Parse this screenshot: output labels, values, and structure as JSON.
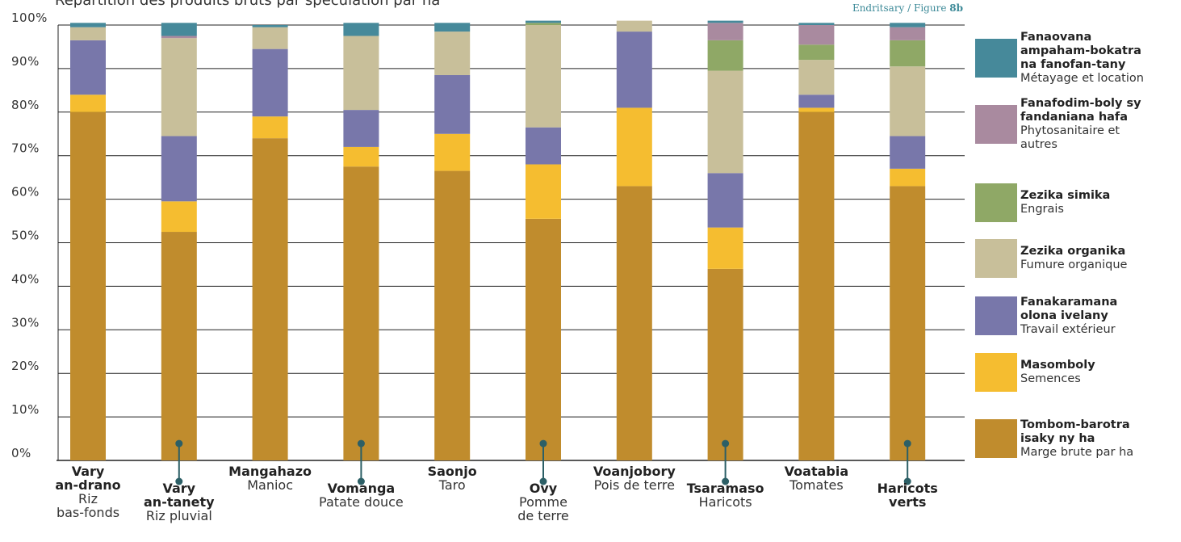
{
  "chart_data": {
    "type": "bar",
    "stacked": true,
    "title": "Répartition des produits bruts par spéculation par ha",
    "source_prefix": "Endritsary / Figure",
    "source_number": "8b",
    "yticks": [
      "0%",
      "10%",
      "20%",
      "30%",
      "40%",
      "50%",
      "60%",
      "70%",
      "80%",
      "90%",
      "100%"
    ],
    "ylim": [
      0,
      100
    ],
    "grid": true,
    "legend_position": "right",
    "categories": [
      {
        "mg": [
          "Vary",
          "an-drano"
        ],
        "fr": [
          "Riz",
          "bas-fonds"
        ],
        "row": 0,
        "pin": false
      },
      {
        "mg": [
          "Vary",
          "an-tanety"
        ],
        "fr": [
          "Riz pluvial"
        ],
        "row": 1,
        "pin": true
      },
      {
        "mg": [
          "Mangahazo"
        ],
        "fr": [
          "Manioc"
        ],
        "row": 0,
        "pin": false
      },
      {
        "mg": [
          "Vomanga"
        ],
        "fr": [
          "Patate douce"
        ],
        "row": 1,
        "pin": true
      },
      {
        "mg": [
          "Saonjo"
        ],
        "fr": [
          "Taro"
        ],
        "row": 0,
        "pin": false
      },
      {
        "mg": [
          "Ovy"
        ],
        "fr": [
          "Pomme",
          "de terre"
        ],
        "row": 1,
        "pin": true
      },
      {
        "mg": [
          "Voanjobory"
        ],
        "fr": [
          "Pois de terre"
        ],
        "row": 0,
        "pin": false
      },
      {
        "mg": [
          "Tsaramaso"
        ],
        "fr": [
          "Haricots"
        ],
        "row": 1,
        "pin": true
      },
      {
        "mg": [
          "Voatabia"
        ],
        "fr": [
          "Tomates"
        ],
        "row": 0,
        "pin": false
      },
      {
        "mg": [
          "Haricots",
          "verts"
        ],
        "fr": [],
        "row": 1,
        "pin": true
      }
    ],
    "series": [
      {
        "name_mg": "Tombom-barotra isaky ny ha",
        "name_fr": "Marge brute par ha",
        "color": "#c08c2d",
        "values": [
          80,
          52.5,
          74,
          67.5,
          66.5,
          55.5,
          63,
          44,
          80,
          63
        ]
      },
      {
        "name_mg": "Masomboly",
        "name_fr": "Semences",
        "color": "#f5bd30",
        "values": [
          4,
          7,
          5,
          4.5,
          8.5,
          12.5,
          18,
          9.5,
          1,
          4
        ]
      },
      {
        "name_mg": "Fanakaramana olona ivelany",
        "name_fr": "Travail extérieur",
        "color": "#7877aa",
        "values": [
          12.5,
          15,
          15.5,
          8.5,
          13.5,
          8.5,
          17.5,
          12.5,
          3,
          7.5
        ]
      },
      {
        "name_mg": "Zezika organika",
        "name_fr": "Fumure organique",
        "color": "#c8bf9a",
        "values": [
          3,
          22.5,
          5,
          17,
          10,
          23.5,
          2.5,
          23.5,
          8,
          16
        ]
      },
      {
        "name_mg": "Zezika simika",
        "name_fr": "Engrais",
        "color": "#8fa866",
        "values": [
          0,
          0,
          0,
          0,
          0,
          0.5,
          0,
          7,
          3.5,
          6
        ]
      },
      {
        "name_mg": "Fanafodim-boly sy fandaniana hafa",
        "name_fr": "Phytosanitaire et autres",
        "color": "#a98a9f",
        "values": [
          0,
          0.5,
          0,
          0,
          0,
          0,
          0,
          4,
          4.5,
          3
        ]
      },
      {
        "name_mg": "Fanaovana ampaham-bokatra na fanofan-tany",
        "name_fr": "Métayage et location",
        "color": "#46899a",
        "values": [
          1,
          3,
          0.5,
          3,
          2,
          0.5,
          0,
          0.5,
          0.5,
          1
        ]
      }
    ]
  },
  "legend": [
    {
      "mg": [
        "Fanaovana",
        "ampaham-bokatra",
        "na fanofan-tany"
      ],
      "fr": [
        "Métayage et location"
      ],
      "color": "#46899a"
    },
    {
      "mg": [
        "Fanafodim-boly sy",
        "fandaniana hafa"
      ],
      "fr": [
        "Phytosanitaire et",
        "autres"
      ],
      "color": "#a98a9f"
    },
    {
      "mg": [
        "Zezika simika"
      ],
      "fr": [
        "Engrais"
      ],
      "color": "#8fa866"
    },
    {
      "mg": [
        "Zezika organika"
      ],
      "fr": [
        "Fumure organique"
      ],
      "color": "#c8bf9a"
    },
    {
      "mg": [
        "Fanakaramana",
        "olona ivelany"
      ],
      "fr": [
        "Travail extérieur"
      ],
      "color": "#7877aa"
    },
    {
      "mg": [
        "Masomboly"
      ],
      "fr": [
        "Semences"
      ],
      "color": "#f5bd30"
    },
    {
      "mg": [
        "Tombom-barotra",
        "isaky ny ha"
      ],
      "fr": [
        "Marge brute par ha"
      ],
      "color": "#c08c2d"
    }
  ],
  "colors": {
    "gridline": "#222222",
    "pin": "#2c5f66"
  }
}
